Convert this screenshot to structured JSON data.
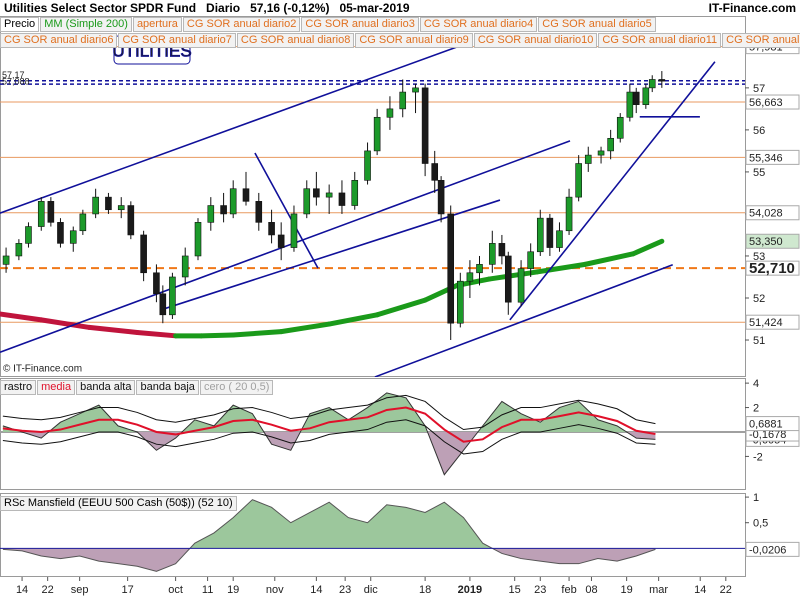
{
  "header": {
    "title": "Utilities Select Sector SPDR Fund",
    "period": "Diario",
    "price": "57,16 (-0,12%)",
    "date": "05-mar-2019",
    "brand": "IT-Finance.com"
  },
  "chart_data": [
    {
      "type": "candlestick",
      "legend_rows": [
        [
          {
            "name": "Precio",
            "color": "#000000"
          },
          {
            "name": "MM (Simple 200)",
            "color": "#1a9a1a"
          },
          {
            "name": "apertura",
            "color": "#e07020"
          },
          {
            "name": "CG SOR anual diario2",
            "color": "#e07020"
          },
          {
            "name": "CG SOR anual diario3",
            "color": "#e07020"
          },
          {
            "name": "CG SOR anual diario4",
            "color": "#e07020"
          },
          {
            "name": "CG SOR anual diario5",
            "color": "#e07020"
          }
        ],
        [
          {
            "name": "CG SOR anual diario6",
            "color": "#e07020"
          },
          {
            "name": "CG SOR anual diario7",
            "color": "#e07020"
          },
          {
            "name": "CG SOR anual diario8",
            "color": "#e07020"
          },
          {
            "name": "CG SOR anual diario9",
            "color": "#e07020"
          },
          {
            "name": "CG SOR anual diario10",
            "color": "#e07020"
          },
          {
            "name": "CG SOR anual diario11",
            "color": "#e07020"
          },
          {
            "name": "CG SOR anual",
            "color": "#e07020"
          }
        ]
      ],
      "x": [
        9,
        13,
        16,
        20,
        23,
        26,
        30,
        33,
        37,
        41,
        45,
        48,
        52,
        56,
        58,
        61,
        65,
        69,
        73,
        77,
        80,
        84,
        88,
        92,
        95,
        99,
        103,
        106,
        110,
        114,
        118,
        122,
        125,
        129,
        133,
        137,
        140,
        143,
        145,
        148,
        151,
        154,
        157,
        161,
        164,
        166,
        170,
        173,
        176,
        179,
        182,
        185,
        188,
        191,
        195,
        198,
        201,
        204,
        206,
        209,
        211,
        214
      ],
      "open": [
        52.8,
        53.0,
        53.3,
        53.7,
        54.3,
        53.8,
        53.3,
        53.6,
        54.0,
        54.4,
        54.1,
        54.2,
        53.5,
        52.6,
        52.1,
        51.6,
        52.5,
        53.0,
        53.8,
        54.2,
        54.0,
        54.6,
        54.3,
        53.8,
        53.5,
        53.2,
        54.0,
        54.6,
        54.4,
        54.5,
        54.2,
        54.8,
        55.5,
        56.3,
        56.5,
        56.9,
        57.0,
        55.2,
        54.8,
        54.0,
        51.4,
        52.4,
        52.6,
        52.8,
        53.3,
        53.0,
        51.9,
        52.7,
        53.1,
        53.9,
        53.2,
        53.6,
        54.4,
        55.2,
        55.4,
        55.5,
        55.8,
        56.3,
        56.9,
        56.6,
        57.0,
        57.2
      ],
      "high": [
        53.2,
        53.4,
        53.8,
        54.4,
        54.4,
        53.9,
        53.7,
        54.1,
        54.6,
        54.5,
        54.4,
        54.3,
        53.6,
        52.8,
        52.3,
        52.6,
        53.2,
        53.9,
        54.4,
        54.5,
        54.8,
        55.0,
        54.5,
        54.1,
        53.8,
        54.2,
        54.8,
        55.0,
        54.7,
        54.8,
        55.0,
        55.7,
        56.5,
        56.8,
        57.2,
        57.1,
        57.1,
        55.5,
        54.9,
        54.2,
        52.6,
        52.9,
        53.0,
        53.6,
        53.5,
        53.1,
        52.9,
        53.3,
        54.1,
        54.0,
        53.8,
        54.6,
        55.4,
        55.6,
        55.6,
        56.0,
        56.4,
        57.1,
        57.0,
        57.1,
        57.3,
        57.4
      ],
      "low": [
        52.6,
        52.9,
        53.2,
        53.6,
        53.7,
        53.2,
        53.1,
        53.5,
        53.9,
        54.0,
        53.9,
        53.4,
        52.4,
        51.9,
        51.4,
        51.5,
        52.3,
        52.9,
        53.6,
        53.8,
        53.9,
        54.2,
        53.6,
        53.3,
        52.9,
        53.1,
        53.9,
        54.2,
        54.0,
        54.0,
        54.1,
        54.7,
        55.4,
        56.0,
        56.3,
        56.4,
        54.9,
        54.5,
        53.8,
        51.0,
        51.3,
        52.0,
        52.3,
        52.6,
        52.8,
        51.6,
        51.8,
        52.5,
        53.0,
        53.0,
        53.1,
        53.5,
        54.3,
        55.0,
        55.2,
        55.3,
        55.7,
        56.2,
        56.4,
        56.5,
        56.9,
        57.0
      ],
      "close": [
        53.0,
        53.3,
        53.7,
        54.3,
        53.8,
        53.3,
        53.6,
        54.0,
        54.4,
        54.1,
        54.2,
        53.5,
        52.6,
        52.1,
        51.6,
        52.5,
        53.0,
        53.8,
        54.2,
        54.0,
        54.6,
        54.3,
        53.8,
        53.5,
        53.2,
        54.0,
        54.6,
        54.4,
        54.5,
        54.2,
        54.8,
        55.5,
        56.3,
        56.5,
        56.9,
        57.0,
        55.2,
        54.8,
        54.0,
        51.4,
        52.4,
        52.6,
        52.8,
        53.3,
        53.0,
        51.9,
        52.7,
        53.1,
        53.9,
        53.2,
        53.6,
        54.4,
        55.2,
        55.4,
        55.5,
        55.8,
        56.3,
        56.9,
        56.6,
        57.0,
        57.2,
        57.16
      ],
      "up_color": "#1c9a2a",
      "down_color": "#1a1a1a",
      "xlim": [
        7.1,
        240
      ],
      "ylim": [
        50.12,
        58.71
      ],
      "yticks": [
        51,
        52,
        53,
        54,
        55,
        56,
        57
      ],
      "levels": [
        {
          "value": 57.981,
          "label": "57,981",
          "color": "#e89a60",
          "style": "solid"
        },
        {
          "value": 56.663,
          "label": "56,663",
          "color": "#e89a60",
          "style": "solid"
        },
        {
          "value": 55.346,
          "label": "55,346",
          "color": "#e89a60",
          "style": "solid"
        },
        {
          "value": 54.028,
          "label": "54,028",
          "color": "#e89a60",
          "style": "solid"
        },
        {
          "value": 52.71,
          "label": "52,710",
          "color": "#f07818",
          "style": "dashed"
        },
        {
          "value": 51.424,
          "label": "51,424",
          "color": "#e89a60",
          "style": "solid"
        }
      ],
      "ref_lines": [
        {
          "value": 57.17,
          "label": "57,17"
        },
        {
          "value": 57.088,
          "label": "57,088"
        }
      ],
      "ref_color": "#10109a",
      "ma": {
        "x": [
          7,
          20,
          35,
          50,
          62,
          70,
          80,
          95,
          110,
          125,
          140,
          150,
          160,
          175,
          190,
          205,
          214
        ],
        "values": [
          51.62,
          51.48,
          51.3,
          51.18,
          51.1,
          51.1,
          51.12,
          51.2,
          51.38,
          51.6,
          51.95,
          52.3,
          52.45,
          52.62,
          52.8,
          53.05,
          53.35
        ],
        "up_color": "#1a9a1a",
        "down_color": "#c0143c",
        "value_label": "53,350"
      },
      "trendlines": [
        {
          "x": [
            7.1,
            150.9
          ],
          "y": [
            54.02,
            58.0
          ]
        },
        {
          "x": [
            7.1,
            185.3
          ],
          "y": [
            50.71,
            55.74
          ]
        },
        {
          "x": [
            57.1,
            163.4
          ],
          "y": [
            51.71,
            54.33
          ]
        },
        {
          "x": [
            86.8,
            106.5
          ],
          "y": [
            55.45,
            52.71
          ]
        },
        {
          "x": [
            124.3,
            217.4
          ],
          "y": [
            50.12,
            52.79
          ]
        },
        {
          "x": [
            166.5,
            230.6
          ],
          "y": [
            51.48,
            57.62
          ]
        },
        {
          "x": [
            207.1,
            225.9
          ],
          "y": [
            56.31,
            56.31
          ]
        }
      ],
      "trend_color": "#10109a",
      "watermark": "UTILITIES",
      "copyright": "© IT-Finance.com"
    },
    {
      "type": "line",
      "x": [
        8,
        14,
        20,
        26,
        32,
        38,
        44,
        50,
        56,
        62,
        68,
        74,
        80,
        86,
        92,
        98,
        104,
        110,
        116,
        122,
        128,
        134,
        140,
        146,
        152,
        158,
        164,
        170,
        176,
        182,
        188,
        194,
        200,
        206,
        212
      ],
      "series": [
        {
          "name": "rastro",
          "color": "#333333",
          "fill_up": "#9cc79c",
          "fill_down": "#bda0b6",
          "values": [
            0.5,
            0.0,
            -0.5,
            0.8,
            1.5,
            2.2,
            0.5,
            0.0,
            -1.5,
            -0.5,
            1.0,
            0.5,
            2.2,
            1.5,
            -1.0,
            -1.5,
            1.5,
            2.0,
            1.0,
            2.0,
            3.2,
            2.8,
            0.5,
            -3.5,
            -1.5,
            0.5,
            2.5,
            1.5,
            0.8,
            2.0,
            2.5,
            1.0,
            0.5,
            -0.5,
            -0.6054
          ],
          "value_label": "-0,6054"
        },
        {
          "name": "media",
          "color": "#e0102a",
          "values": [
            0.3,
            0.1,
            0.0,
            0.2,
            0.6,
            1.0,
            1.0,
            0.6,
            0.0,
            -0.2,
            0.1,
            0.4,
            0.9,
            1.0,
            0.6,
            0.1,
            0.3,
            0.8,
            1.0,
            1.2,
            1.8,
            2.0,
            1.5,
            0.2,
            -0.8,
            -0.6,
            0.4,
            1.0,
            1.0,
            1.3,
            1.6,
            1.3,
            0.9,
            0.1,
            -0.1678
          ],
          "value_label": "-0,1678"
        },
        {
          "name": "banda alta",
          "color": "#111111",
          "values": [
            1.3,
            1.1,
            1.0,
            1.2,
            1.6,
            2.0,
            2.0,
            1.6,
            1.0,
            0.8,
            1.1,
            1.4,
            1.9,
            2.0,
            1.6,
            1.1,
            1.3,
            1.8,
            2.0,
            2.2,
            2.8,
            3.0,
            2.5,
            1.2,
            0.2,
            0.4,
            1.4,
            2.0,
            2.0,
            2.3,
            2.6,
            2.3,
            1.9,
            1.0,
            0.6881
          ],
          "value_label": "0,6881"
        },
        {
          "name": "banda baja",
          "color": "#111111",
          "values": [
            -0.7,
            -0.9,
            -1.0,
            -0.8,
            -0.4,
            0.0,
            0.0,
            -0.4,
            -1.0,
            -1.2,
            -0.9,
            -0.6,
            -0.1,
            0.0,
            -0.4,
            -0.9,
            -0.7,
            -0.2,
            0.0,
            0.2,
            0.8,
            1.0,
            0.5,
            -0.8,
            -1.8,
            -1.6,
            -0.6,
            0.0,
            0.0,
            0.3,
            0.6,
            0.3,
            -0.1,
            -0.9,
            -1.0
          ]
        }
      ],
      "zero_line": {
        "name": "cero ( 20 0,5)",
        "value": 0,
        "color": "#a0a0a0"
      },
      "xlim": [
        7.1,
        240
      ],
      "ylim": [
        -4.75,
        4.42
      ],
      "yticks": [
        4,
        2,
        -2
      ]
    },
    {
      "type": "area",
      "title": "RSc Mansfield (EEUU 500 Cash (50$)) (52 10)",
      "x": [
        8,
        14,
        20,
        26,
        32,
        38,
        44,
        50,
        56,
        62,
        68,
        74,
        80,
        86,
        92,
        98,
        104,
        110,
        116,
        122,
        128,
        134,
        140,
        146,
        152,
        158,
        164,
        170,
        176,
        182,
        188,
        194,
        200,
        206,
        212
      ],
      "values": [
        -0.02,
        -0.05,
        -0.15,
        -0.2,
        -0.15,
        -0.25,
        -0.3,
        -0.35,
        -0.45,
        -0.3,
        0.1,
        0.3,
        0.6,
        0.95,
        0.8,
        0.5,
        0.7,
        0.9,
        0.6,
        0.5,
        0.85,
        0.8,
        0.7,
        0.9,
        0.6,
        0.1,
        -0.1,
        -0.2,
        -0.25,
        -0.3,
        -0.3,
        -0.2,
        -0.25,
        -0.15,
        -0.0206
      ],
      "value_label": "-0,0206",
      "line_color": "#1a1a9a",
      "fill_up": "#9cc79c",
      "fill_down": "#bda0b6",
      "xlim": [
        7.1,
        240
      ],
      "ylim": [
        -0.56,
        1.08
      ],
      "yticks": [
        1,
        {
          "value": 0.5,
          "label": "0,5"
        }
      ],
      "xticks": [
        14,
        22,
        {
          "value": 32,
          "label": "sep"
        },
        {
          "value": 47,
          "label": "17"
        },
        {
          "value": 62,
          "label": "oct"
        },
        {
          "value": 72,
          "label": "11"
        },
        {
          "value": 80,
          "label": "19"
        },
        {
          "value": 93,
          "label": "nov"
        },
        {
          "value": 106,
          "label": "14"
        },
        {
          "value": 115,
          "label": "23"
        },
        {
          "value": 123,
          "label": "dic"
        },
        {
          "value": 140,
          "label": "18"
        },
        {
          "value": 154,
          "label": "2019"
        },
        {
          "value": 168,
          "label": "15"
        },
        {
          "value": 176,
          "label": "23"
        },
        {
          "value": 185,
          "label": "feb"
        },
        {
          "value": 192,
          "label": "08"
        },
        {
          "value": 203,
          "label": "19"
        },
        {
          "value": 213,
          "label": "mar"
        },
        {
          "value": 226,
          "label": "14"
        },
        {
          "value": 234,
          "label": "22"
        }
      ]
    }
  ]
}
